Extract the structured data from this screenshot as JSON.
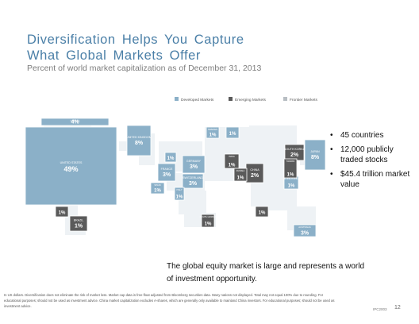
{
  "header": {
    "title_lines": [
      "Diversification  Helps  You  Capture",
      "What Global Markets  Offer"
    ],
    "subtitle": "Percent of world market capitalization as of December 31, 2013"
  },
  "chart_data": {
    "type": "treemap-map",
    "title": "Diversification Helps You Capture What Global Markets Offer",
    "subtitle": "Percent of world market capitalization as of December 31, 2013",
    "legend": {
      "placement": "top-right",
      "entries": [
        {
          "label": "Developed Markets",
          "color": "#8bb0c8"
        },
        {
          "label": "Emerging Markets",
          "color": "#5a5a5a"
        },
        {
          "label": "Frontier Markets",
          "color": "#b8bec3"
        }
      ]
    },
    "markets": [
      {
        "name": "CANADA",
        "pct_label": "4%",
        "value": 4,
        "category": "Developed Markets"
      },
      {
        "name": "UNITED STATES",
        "pct_label": "49%",
        "value": 49,
        "category": "Developed Markets"
      },
      {
        "name": "UNITED KINGDOM",
        "pct_label": "8%",
        "value": 8,
        "category": "Developed Markets"
      },
      {
        "name": "FRANCE",
        "pct_label": "3%",
        "value": 3,
        "category": "Developed Markets"
      },
      {
        "name": "GERMANY",
        "pct_label": "3%",
        "value": 3,
        "category": "Developed Markets"
      },
      {
        "name": "SWITZERLAND",
        "pct_label": "3%",
        "value": 3,
        "category": "Developed Markets"
      },
      {
        "name": "SPAIN",
        "pct_label": "1%",
        "value": 1,
        "category": "Developed Markets"
      },
      {
        "name": "ITALY",
        "pct_label": "1%",
        "value": 1,
        "category": "Developed Markets"
      },
      {
        "name": "SWEDEN",
        "pct_label": "1%",
        "value": 1,
        "category": "Developed Markets"
      },
      {
        "name": "",
        "pct_label": "1%",
        "value": 1,
        "category": "Developed Markets"
      },
      {
        "name": "",
        "pct_label": "1%",
        "value": 1,
        "category": "Developed Markets"
      },
      {
        "name": "JAPAN",
        "pct_label": "8%",
        "value": 8,
        "category": "Developed Markets"
      },
      {
        "name": "HONG KONG",
        "pct_label": "1%",
        "value": 1,
        "category": "Developed Markets"
      },
      {
        "name": "AUSTRALIA",
        "pct_label": "3%",
        "value": 3,
        "category": "Developed Markets"
      },
      {
        "name": "CHINA",
        "pct_label": "2%",
        "value": 2,
        "category": "Emerging Markets"
      },
      {
        "name": "SOUTH KOREA",
        "pct_label": "2%",
        "value": 2,
        "category": "Emerging Markets"
      },
      {
        "name": "TAIWAN",
        "pct_label": "1%",
        "value": 1,
        "category": "Emerging Markets"
      },
      {
        "name": "INDIA",
        "pct_label": "1%",
        "value": 1,
        "category": "Emerging Markets"
      },
      {
        "name": "RUSSIA",
        "pct_label": "1%",
        "value": 1,
        "category": "Emerging Markets"
      },
      {
        "name": "SOUTH AFRICA",
        "pct_label": "1%",
        "value": 1,
        "category": "Emerging Markets"
      },
      {
        "name": "",
        "pct_label": "1%",
        "value": 1,
        "category": "Emerging Markets"
      },
      {
        "name": "BRAZIL",
        "pct_label": "1%",
        "value": 1,
        "category": "Emerging Markets"
      },
      {
        "name": "",
        "pct_label": "1%",
        "value": 1,
        "category": "Emerging Markets"
      }
    ]
  },
  "bullets": [
    "45 countries",
    "12,000 publicly traded stocks",
    "$45.4 trillion market value"
  ],
  "caption": "The global equity market is large and represents a world of investment opportunity.",
  "footnote": "In US dollars. Diversification does not eliminate the risk of market loss. Market cap data is free-float adjusted from Bloomberg securities data. Many nations not displayed. Total may not equal 100% due to rounding. For educational purposes; should not be used as investment advice. China market capitalization excludes A-shares, which are generally only available to mainland China investors. For educational purposes; should not be used as investment advice.",
  "code": "IPC2003",
  "page_number": "12"
}
